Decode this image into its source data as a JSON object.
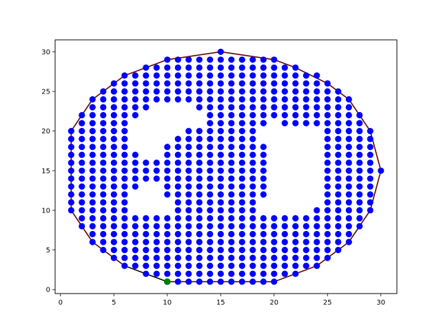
{
  "chart_data": {
    "type": "scatter",
    "xlim": [
      -0.5,
      31.5
    ],
    "ylim": [
      -0.5,
      31.5
    ],
    "xticks": [
      0,
      5,
      10,
      15,
      20,
      25,
      30
    ],
    "yticks": [
      0,
      5,
      10,
      15,
      20,
      25,
      30
    ],
    "grid": false,
    "colors": {
      "points": "#0000ff",
      "hull": "#000000",
      "hull_overlay": "#8b0000",
      "start": "#008000"
    },
    "start_point": [
      10,
      1
    ],
    "hull": [
      [
        10,
        1
      ],
      [
        20,
        1
      ],
      [
        22,
        2
      ],
      [
        24,
        3
      ],
      [
        26,
        5
      ],
      [
        27,
        6
      ],
      [
        28,
        8
      ],
      [
        29,
        10
      ],
      [
        30,
        15
      ],
      [
        29,
        20
      ],
      [
        28,
        22
      ],
      [
        27,
        24
      ],
      [
        25,
        26
      ],
      [
        22,
        28
      ],
      [
        20,
        29
      ],
      [
        15,
        30
      ],
      [
        10,
        29
      ],
      [
        8,
        28
      ],
      [
        6,
        27
      ],
      [
        4,
        25
      ],
      [
        3,
        24
      ],
      [
        2,
        22
      ],
      [
        1,
        20
      ],
      [
        1,
        10
      ],
      [
        2,
        8
      ],
      [
        3,
        6
      ],
      [
        4,
        5
      ],
      [
        5,
        4
      ],
      [
        6,
        3
      ],
      [
        8,
        2
      ],
      [
        10,
        1
      ]
    ],
    "rows": [
      {
        "y": 1,
        "xs": [
          10,
          11,
          12,
          13,
          14,
          15,
          16,
          17,
          18,
          19,
          20
        ]
      },
      {
        "y": 2,
        "xs": [
          8,
          9,
          10,
          11,
          12,
          13,
          14,
          15,
          16,
          17,
          18,
          19,
          20,
          21,
          22
        ]
      },
      {
        "y": 3,
        "xs": [
          6,
          7,
          8,
          9,
          10,
          11,
          12,
          13,
          14,
          15,
          16,
          17,
          18,
          19,
          20,
          21,
          22,
          23,
          24
        ]
      },
      {
        "y": 4,
        "xs": [
          5,
          6,
          7,
          8,
          9,
          10,
          11,
          12,
          13,
          14,
          15,
          16,
          17,
          18,
          19,
          20,
          21,
          22,
          23,
          24,
          25
        ]
      },
      {
        "y": 5,
        "xs": [
          4,
          5,
          6,
          7,
          8,
          9,
          10,
          11,
          12,
          13,
          14,
          15,
          16,
          17,
          18,
          19,
          20,
          21,
          22,
          23,
          24,
          25,
          26
        ]
      },
      {
        "y": 6,
        "xs": [
          3,
          4,
          5,
          6,
          7,
          8,
          9,
          10,
          11,
          12,
          13,
          14,
          15,
          16,
          17,
          18,
          19,
          20,
          21,
          22,
          23,
          24,
          25,
          26,
          27
        ]
      },
      {
        "y": 7,
        "xs": [
          3,
          4,
          5,
          6,
          7,
          8,
          9,
          10,
          11,
          12,
          13,
          14,
          15,
          16,
          17,
          18,
          19,
          20,
          21,
          22,
          23,
          24,
          25,
          26,
          27
        ]
      },
      {
        "y": 8,
        "xs": [
          2,
          3,
          4,
          5,
          6,
          7,
          8,
          9,
          10,
          11,
          12,
          13,
          14,
          15,
          16,
          17,
          18,
          19,
          20,
          21,
          22,
          23,
          24,
          25,
          26,
          27,
          28
        ]
      },
      {
        "y": 9,
        "xs": [
          2,
          3,
          4,
          5,
          6,
          7,
          8,
          9,
          10,
          11,
          12,
          13,
          14,
          15,
          16,
          17,
          18,
          19,
          20,
          21,
          22,
          23,
          24,
          25,
          26,
          27,
          28
        ]
      },
      {
        "y": 10,
        "xs": [
          1,
          2,
          3,
          4,
          5,
          6,
          11,
          12,
          13,
          14,
          15,
          16,
          17,
          18,
          24,
          25,
          26,
          27,
          28,
          29
        ]
      },
      {
        "y": 11,
        "xs": [
          1,
          2,
          3,
          4,
          5,
          6,
          11,
          12,
          13,
          14,
          15,
          16,
          17,
          18,
          25,
          26,
          27,
          28,
          29
        ]
      },
      {
        "y": 12,
        "xs": [
          1,
          2,
          3,
          4,
          5,
          6,
          10,
          11,
          12,
          13,
          14,
          15,
          16,
          17,
          18,
          19,
          25,
          26,
          27,
          28,
          29
        ]
      },
      {
        "y": 13,
        "xs": [
          1,
          2,
          3,
          4,
          5,
          6,
          7,
          10,
          11,
          12,
          13,
          14,
          15,
          16,
          17,
          18,
          19,
          25,
          26,
          27,
          28,
          29
        ]
      },
      {
        "y": 14,
        "xs": [
          1,
          2,
          3,
          4,
          5,
          6,
          7,
          8,
          9,
          10,
          11,
          12,
          13,
          14,
          15,
          16,
          17,
          18,
          19,
          25,
          26,
          27,
          28,
          29
        ]
      },
      {
        "y": 15,
        "xs": [
          1,
          2,
          3,
          4,
          5,
          6,
          7,
          8,
          9,
          10,
          11,
          12,
          13,
          14,
          15,
          16,
          17,
          18,
          19,
          25,
          26,
          27,
          28,
          29,
          30
        ]
      },
      {
        "y": 16,
        "xs": [
          1,
          2,
          3,
          4,
          5,
          6,
          7,
          8,
          9,
          10,
          11,
          12,
          13,
          14,
          15,
          16,
          17,
          18,
          19,
          25,
          26,
          27,
          28,
          29
        ]
      },
      {
        "y": 17,
        "xs": [
          1,
          2,
          3,
          4,
          5,
          6,
          7,
          10,
          11,
          12,
          13,
          14,
          15,
          16,
          17,
          18,
          19,
          25,
          26,
          27,
          28,
          29
        ]
      },
      {
        "y": 18,
        "xs": [
          1,
          2,
          3,
          4,
          5,
          6,
          10,
          11,
          12,
          13,
          14,
          15,
          16,
          17,
          18,
          19,
          25,
          26,
          27,
          28,
          29
        ]
      },
      {
        "y": 19,
        "xs": [
          1,
          2,
          3,
          4,
          5,
          6,
          11,
          12,
          13,
          14,
          15,
          16,
          17,
          18,
          25,
          26,
          27,
          28,
          29
        ]
      },
      {
        "y": 20,
        "xs": [
          1,
          2,
          3,
          4,
          5,
          6,
          12,
          13,
          14,
          15,
          16,
          17,
          18,
          25,
          26,
          27,
          28,
          29
        ]
      },
      {
        "y": 21,
        "xs": [
          2,
          3,
          4,
          5,
          6,
          14,
          15,
          16,
          17,
          18,
          19,
          21,
          22,
          23,
          24,
          25,
          26,
          27,
          28
        ]
      },
      {
        "y": 22,
        "xs": [
          2,
          3,
          4,
          5,
          6,
          7,
          14,
          15,
          16,
          17,
          18,
          19,
          20,
          21,
          22,
          23,
          24,
          25,
          26,
          27,
          28
        ]
      },
      {
        "y": 23,
        "xs": [
          3,
          4,
          5,
          6,
          7,
          8,
          13,
          14,
          15,
          16,
          17,
          18,
          19,
          20,
          21,
          22,
          23,
          24,
          25,
          26,
          27
        ]
      },
      {
        "y": 24,
        "xs": [
          3,
          4,
          5,
          6,
          7,
          8,
          9,
          10,
          11,
          12,
          13,
          14,
          15,
          16,
          17,
          18,
          19,
          20,
          21,
          22,
          23,
          24,
          25,
          26,
          27
        ]
      },
      {
        "y": 25,
        "xs": [
          4,
          5,
          6,
          7,
          8,
          9,
          10,
          11,
          12,
          13,
          14,
          15,
          16,
          17,
          18,
          19,
          20,
          21,
          22,
          23,
          24,
          25,
          26
        ]
      },
      {
        "y": 26,
        "xs": [
          5,
          6,
          7,
          8,
          9,
          10,
          11,
          12,
          13,
          14,
          15,
          16,
          17,
          18,
          19,
          20,
          21,
          22,
          23,
          24,
          25
        ]
      },
      {
        "y": 27,
        "xs": [
          6,
          7,
          8,
          9,
          10,
          11,
          12,
          13,
          14,
          15,
          16,
          17,
          18,
          19,
          20,
          21,
          22,
          23,
          24
        ]
      },
      {
        "y": 28,
        "xs": [
          8,
          9,
          10,
          11,
          12,
          13,
          14,
          15,
          16,
          17,
          18,
          19,
          20,
          21,
          22
        ]
      },
      {
        "y": 29,
        "xs": [
          10,
          11,
          12,
          13,
          14,
          15,
          16,
          17,
          18,
          19,
          20
        ]
      },
      {
        "y": 30,
        "xs": [
          15
        ]
      }
    ]
  }
}
